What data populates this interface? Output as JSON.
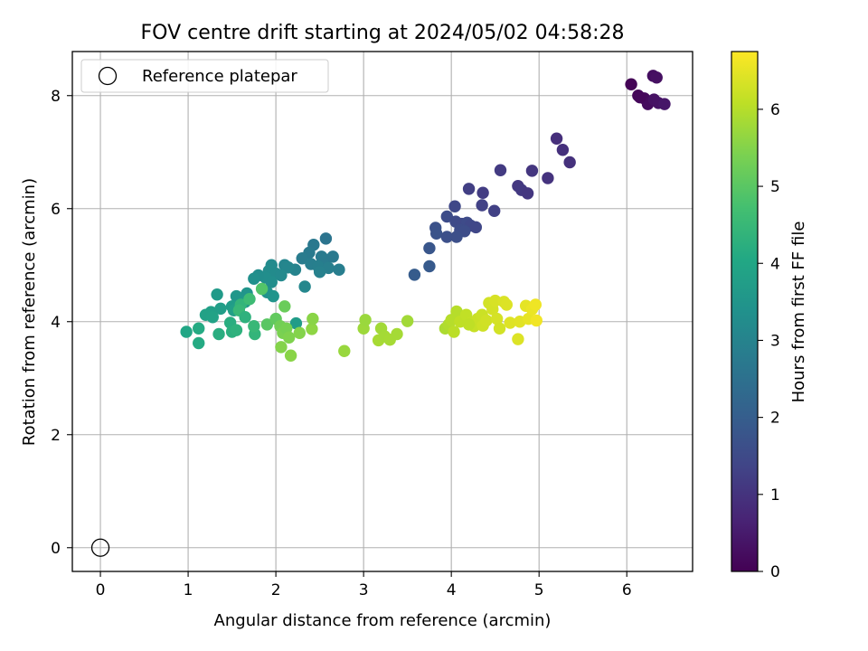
{
  "chart_data": {
    "type": "scatter",
    "title": "FOV centre drift starting at 2024/05/02 04:58:28",
    "xlabel": "Angular distance from reference (arcmin)",
    "ylabel": "Rotation from reference (arcmin)",
    "xlim": [
      -0.32,
      6.75
    ],
    "ylim": [
      -0.42,
      8.78
    ],
    "xticks": [
      0,
      1,
      2,
      3,
      4,
      5,
      6
    ],
    "yticks": [
      0,
      2,
      4,
      6,
      8
    ],
    "grid": true,
    "legend": {
      "location": "upper-left",
      "entries": [
        "Reference platepar"
      ]
    },
    "reference_point": {
      "x": 0,
      "y": 0,
      "marker": "open-circle",
      "color": "#000000"
    },
    "colorbar": {
      "label": "Hours from first FF file",
      "range": [
        0,
        6.75
      ],
      "ticks": [
        0,
        1,
        2,
        3,
        4,
        5,
        6
      ],
      "colormap": "viridis"
    },
    "points": [
      {
        "x": 6.05,
        "y": 8.2,
        "t": 0.05
      },
      {
        "x": 6.13,
        "y": 8.0,
        "t": 0.1
      },
      {
        "x": 6.2,
        "y": 7.95,
        "t": 0.15
      },
      {
        "x": 6.24,
        "y": 7.85,
        "t": 0.2
      },
      {
        "x": 6.3,
        "y": 8.35,
        "t": 0.25
      },
      {
        "x": 6.34,
        "y": 8.32,
        "t": 0.28
      },
      {
        "x": 6.31,
        "y": 7.93,
        "t": 0.3
      },
      {
        "x": 6.36,
        "y": 7.87,
        "t": 0.33
      },
      {
        "x": 6.43,
        "y": 7.85,
        "t": 0.4
      },
      {
        "x": 6.15,
        "y": 7.97,
        "t": 0.12
      },
      {
        "x": 5.2,
        "y": 7.24,
        "t": 0.9
      },
      {
        "x": 5.27,
        "y": 7.04,
        "t": 0.92
      },
      {
        "x": 5.35,
        "y": 6.82,
        "t": 0.95
      },
      {
        "x": 4.92,
        "y": 6.67,
        "t": 1.05
      },
      {
        "x": 5.1,
        "y": 6.54,
        "t": 1.0
      },
      {
        "x": 4.56,
        "y": 6.68,
        "t": 1.15
      },
      {
        "x": 4.76,
        "y": 6.4,
        "t": 1.1
      },
      {
        "x": 4.8,
        "y": 6.33,
        "t": 1.12
      },
      {
        "x": 4.87,
        "y": 6.27,
        "t": 1.08
      },
      {
        "x": 4.2,
        "y": 6.35,
        "t": 1.25
      },
      {
        "x": 4.36,
        "y": 6.28,
        "t": 1.2
      },
      {
        "x": 4.35,
        "y": 6.06,
        "t": 1.3
      },
      {
        "x": 4.49,
        "y": 5.96,
        "t": 1.28
      },
      {
        "x": 4.04,
        "y": 6.04,
        "t": 1.45
      },
      {
        "x": 3.95,
        "y": 5.86,
        "t": 1.55
      },
      {
        "x": 4.05,
        "y": 5.77,
        "t": 1.5
      },
      {
        "x": 4.12,
        "y": 5.73,
        "t": 1.48
      },
      {
        "x": 4.18,
        "y": 5.75,
        "t": 1.52
      },
      {
        "x": 4.22,
        "y": 5.7,
        "t": 1.46
      },
      {
        "x": 4.28,
        "y": 5.67,
        "t": 1.42
      },
      {
        "x": 4.1,
        "y": 5.62,
        "t": 1.55
      },
      {
        "x": 4.15,
        "y": 5.6,
        "t": 1.58
      },
      {
        "x": 3.82,
        "y": 5.66,
        "t": 1.7
      },
      {
        "x": 3.83,
        "y": 5.56,
        "t": 1.72
      },
      {
        "x": 3.95,
        "y": 5.5,
        "t": 1.65
      },
      {
        "x": 4.06,
        "y": 5.5,
        "t": 1.62
      },
      {
        "x": 3.75,
        "y": 5.3,
        "t": 1.8
      },
      {
        "x": 3.75,
        "y": 4.98,
        "t": 1.9
      },
      {
        "x": 3.58,
        "y": 4.83,
        "t": 1.95
      },
      {
        "x": 2.57,
        "y": 5.47,
        "t": 2.6
      },
      {
        "x": 2.43,
        "y": 5.36,
        "t": 2.7
      },
      {
        "x": 2.38,
        "y": 5.22,
        "t": 2.75
      },
      {
        "x": 2.3,
        "y": 5.12,
        "t": 2.8
      },
      {
        "x": 2.52,
        "y": 5.15,
        "t": 2.75
      },
      {
        "x": 2.56,
        "y": 5.1,
        "t": 2.78
      },
      {
        "x": 2.65,
        "y": 5.15,
        "t": 2.72
      },
      {
        "x": 2.4,
        "y": 5.02,
        "t": 2.85
      },
      {
        "x": 2.48,
        "y": 4.98,
        "t": 2.9
      },
      {
        "x": 2.6,
        "y": 4.95,
        "t": 2.88
      },
      {
        "x": 2.72,
        "y": 4.92,
        "t": 2.85
      },
      {
        "x": 2.5,
        "y": 4.88,
        "t": 2.95
      },
      {
        "x": 2.22,
        "y": 4.92,
        "t": 3.0
      },
      {
        "x": 2.1,
        "y": 5.0,
        "t": 3.05
      },
      {
        "x": 2.14,
        "y": 4.96,
        "t": 3.08
      },
      {
        "x": 1.95,
        "y": 5.0,
        "t": 3.2
      },
      {
        "x": 1.92,
        "y": 4.9,
        "t": 3.25
      },
      {
        "x": 2.0,
        "y": 4.85,
        "t": 3.22
      },
      {
        "x": 1.88,
        "y": 4.78,
        "t": 3.3
      },
      {
        "x": 1.8,
        "y": 4.82,
        "t": 3.28
      },
      {
        "x": 2.06,
        "y": 4.82,
        "t": 3.18
      },
      {
        "x": 1.75,
        "y": 4.76,
        "t": 3.35
      },
      {
        "x": 1.95,
        "y": 4.7,
        "t": 3.3
      },
      {
        "x": 2.33,
        "y": 4.62,
        "t": 3.1
      },
      {
        "x": 1.9,
        "y": 4.52,
        "t": 3.4
      },
      {
        "x": 1.97,
        "y": 4.45,
        "t": 3.45
      },
      {
        "x": 1.67,
        "y": 4.5,
        "t": 3.5
      },
      {
        "x": 1.55,
        "y": 4.45,
        "t": 3.55
      },
      {
        "x": 1.65,
        "y": 4.35,
        "t": 3.6
      },
      {
        "x": 1.33,
        "y": 4.48,
        "t": 3.65
      },
      {
        "x": 1.5,
        "y": 4.27,
        "t": 3.7
      },
      {
        "x": 1.37,
        "y": 4.23,
        "t": 3.75
      },
      {
        "x": 1.26,
        "y": 4.17,
        "t": 3.8
      },
      {
        "x": 1.2,
        "y": 4.12,
        "t": 3.85
      },
      {
        "x": 1.28,
        "y": 4.08,
        "t": 3.88
      },
      {
        "x": 1.52,
        "y": 4.2,
        "t": 3.78
      },
      {
        "x": 2.23,
        "y": 3.97,
        "t": 3.7
      },
      {
        "x": 1.84,
        "y": 4.58,
        "t": 4.9
      },
      {
        "x": 1.6,
        "y": 4.3,
        "t": 4.4
      },
      {
        "x": 1.7,
        "y": 4.4,
        "t": 4.6
      },
      {
        "x": 1.58,
        "y": 4.2,
        "t": 4.5
      },
      {
        "x": 1.65,
        "y": 4.08,
        "t": 4.3
      },
      {
        "x": 1.48,
        "y": 3.98,
        "t": 4.2
      },
      {
        "x": 1.12,
        "y": 3.88,
        "t": 4.1
      },
      {
        "x": 0.98,
        "y": 3.82,
        "t": 4.0
      },
      {
        "x": 1.12,
        "y": 3.62,
        "t": 4.1
      },
      {
        "x": 1.35,
        "y": 3.78,
        "t": 4.2
      },
      {
        "x": 1.5,
        "y": 3.82,
        "t": 4.25
      },
      {
        "x": 1.55,
        "y": 3.85,
        "t": 4.3
      },
      {
        "x": 1.76,
        "y": 3.78,
        "t": 4.4
      },
      {
        "x": 1.75,
        "y": 3.92,
        "t": 4.5
      },
      {
        "x": 1.9,
        "y": 3.95,
        "t": 5.0
      },
      {
        "x": 2.0,
        "y": 4.05,
        "t": 5.1
      },
      {
        "x": 2.1,
        "y": 4.27,
        "t": 5.2
      },
      {
        "x": 2.05,
        "y": 3.92,
        "t": 5.3
      },
      {
        "x": 2.08,
        "y": 3.8,
        "t": 5.4
      },
      {
        "x": 2.12,
        "y": 3.88,
        "t": 5.35
      },
      {
        "x": 2.15,
        "y": 3.72,
        "t": 5.45
      },
      {
        "x": 2.06,
        "y": 3.55,
        "t": 5.5
      },
      {
        "x": 2.17,
        "y": 3.4,
        "t": 5.55
      },
      {
        "x": 2.27,
        "y": 3.8,
        "t": 5.5
      },
      {
        "x": 2.41,
        "y": 3.87,
        "t": 5.6
      },
      {
        "x": 2.42,
        "y": 4.05,
        "t": 5.55
      },
      {
        "x": 2.78,
        "y": 3.48,
        "t": 5.7
      },
      {
        "x": 3.0,
        "y": 3.88,
        "t": 5.75
      },
      {
        "x": 3.02,
        "y": 4.03,
        "t": 5.72
      },
      {
        "x": 3.2,
        "y": 3.88,
        "t": 5.8
      },
      {
        "x": 3.17,
        "y": 3.67,
        "t": 5.85
      },
      {
        "x": 3.24,
        "y": 3.74,
        "t": 5.82
      },
      {
        "x": 3.3,
        "y": 3.68,
        "t": 5.84
      },
      {
        "x": 3.38,
        "y": 3.78,
        "t": 5.83
      },
      {
        "x": 3.5,
        "y": 4.01,
        "t": 5.8
      },
      {
        "x": 3.93,
        "y": 3.88,
        "t": 5.9
      },
      {
        "x": 3.97,
        "y": 3.95,
        "t": 5.95
      },
      {
        "x": 4.0,
        "y": 4.03,
        "t": 6.0
      },
      {
        "x": 4.03,
        "y": 3.82,
        "t": 6.05
      },
      {
        "x": 4.06,
        "y": 4.18,
        "t": 6.0
      },
      {
        "x": 4.1,
        "y": 4.0,
        "t": 6.1
      },
      {
        "x": 4.17,
        "y": 4.12,
        "t": 6.12
      },
      {
        "x": 4.22,
        "y": 3.98,
        "t": 6.15
      },
      {
        "x": 4.26,
        "y": 3.92,
        "t": 6.18
      },
      {
        "x": 4.3,
        "y": 4.05,
        "t": 6.2
      },
      {
        "x": 4.35,
        "y": 4.12,
        "t": 6.22
      },
      {
        "x": 4.36,
        "y": 3.93,
        "t": 6.25
      },
      {
        "x": 4.4,
        "y": 4.02,
        "t": 6.28
      },
      {
        "x": 4.43,
        "y": 4.33,
        "t": 6.3
      },
      {
        "x": 4.47,
        "y": 4.22,
        "t": 6.32
      },
      {
        "x": 4.5,
        "y": 4.37,
        "t": 6.35
      },
      {
        "x": 4.52,
        "y": 4.05,
        "t": 6.33
      },
      {
        "x": 4.55,
        "y": 3.88,
        "t": 6.3
      },
      {
        "x": 4.6,
        "y": 4.35,
        "t": 6.38
      },
      {
        "x": 4.63,
        "y": 4.3,
        "t": 6.4
      },
      {
        "x": 4.67,
        "y": 3.98,
        "t": 6.42
      },
      {
        "x": 4.76,
        "y": 3.69,
        "t": 6.4
      },
      {
        "x": 4.78,
        "y": 4.0,
        "t": 6.45
      },
      {
        "x": 4.85,
        "y": 4.28,
        "t": 6.5
      },
      {
        "x": 4.88,
        "y": 4.05,
        "t": 6.52
      },
      {
        "x": 4.92,
        "y": 4.22,
        "t": 6.55
      },
      {
        "x": 4.96,
        "y": 4.3,
        "t": 6.6
      },
      {
        "x": 4.97,
        "y": 4.02,
        "t": 6.62
      },
      {
        "x": 4.2,
        "y": 3.95,
        "t": 6.1
      }
    ]
  }
}
